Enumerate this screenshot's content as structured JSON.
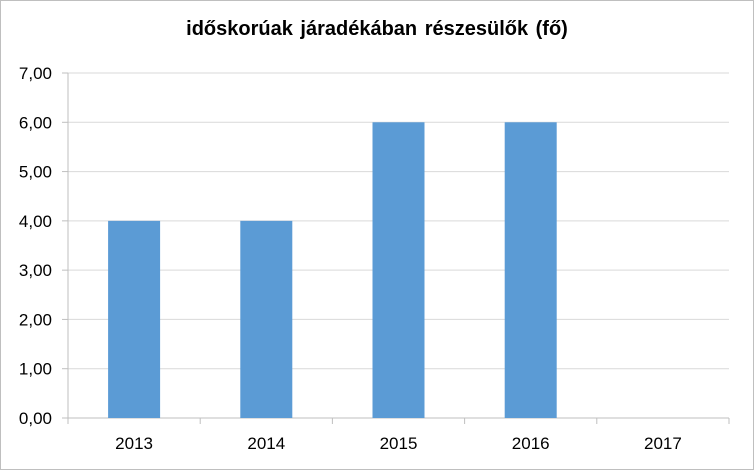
{
  "chart_data": {
    "type": "bar",
    "title": "időskorúak járadékában részesülők (fő)",
    "categories": [
      "2013",
      "2014",
      "2015",
      "2016",
      "2017"
    ],
    "values": [
      4,
      4,
      6,
      6,
      0
    ],
    "ylim": [
      0,
      7
    ],
    "yticks": [
      "0,00",
      "1,00",
      "2,00",
      "3,00",
      "4,00",
      "5,00",
      "6,00",
      "7,00"
    ],
    "grid": true,
    "legend": "none",
    "bar_color": "#5b9bd5",
    "grid_color": "#d9d9d9",
    "axis_color": "#bfbfbf"
  }
}
